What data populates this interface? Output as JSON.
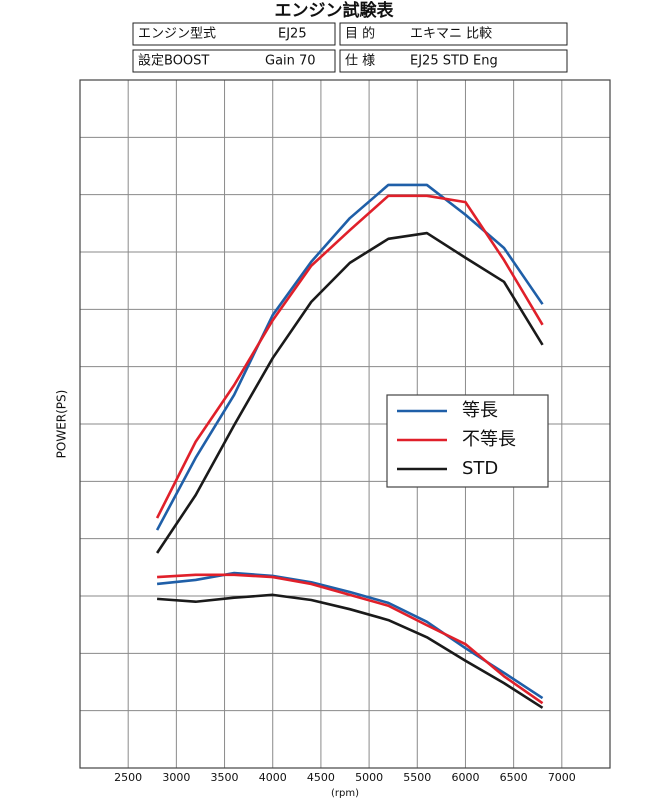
{
  "header": {
    "title": "エンジン試験表",
    "rows": [
      [
        "エンジン型式",
        "EJ25",
        "目 的",
        "エキマニ 比較"
      ],
      [
        "設定BOOST",
        "Gain 70",
        "仕 様",
        "EJ25 STD Eng"
      ]
    ]
  },
  "chart_data": {
    "type": "line",
    "ylabel": "POWER(PS)",
    "xlabel": "(rpm)",
    "x": [
      2800,
      3200,
      3600,
      4000,
      4400,
      4800,
      5200,
      5600,
      6000,
      6400,
      6800
    ],
    "series": [
      {
        "name": "等長",
        "color": "#1f5fa8",
        "values": [
          4.15,
          5.41,
          6.51,
          7.9,
          8.83,
          9.59,
          10.17,
          10.17,
          9.65,
          9.07,
          8.09
        ],
        "torque": [
          3.21,
          3.28,
          3.4,
          3.35,
          3.24,
          3.07,
          2.88,
          2.55,
          2.09,
          1.66,
          1.22
        ]
      },
      {
        "name": "不等長",
        "color": "#e0202a",
        "values": [
          4.36,
          5.69,
          6.68,
          7.81,
          8.76,
          9.38,
          9.98,
          9.98,
          9.87,
          8.86,
          7.73
        ],
        "torque": [
          3.33,
          3.37,
          3.37,
          3.33,
          3.21,
          3.02,
          2.83,
          2.49,
          2.16,
          1.6,
          1.13
        ]
      },
      {
        "name": "STD",
        "color": "#1a1a1a",
        "values": [
          3.75,
          4.76,
          5.98,
          7.15,
          8.13,
          8.81,
          9.23,
          9.33,
          8.9,
          8.48,
          7.38
        ],
        "torque": [
          2.95,
          2.9,
          2.97,
          3.02,
          2.93,
          2.77,
          2.58,
          2.28,
          1.87,
          1.48,
          1.05
        ]
      }
    ],
    "xlim": [
      2000,
      7500
    ],
    "ylim": [
      0,
      12
    ],
    "xticks": [
      2500,
      3000,
      3500,
      4000,
      4500,
      5000,
      5500,
      6000,
      6500,
      7000
    ],
    "ygrid": [
      1,
      2,
      3,
      4,
      5,
      6,
      7,
      8,
      9,
      10,
      11
    ],
    "grid": true
  }
}
